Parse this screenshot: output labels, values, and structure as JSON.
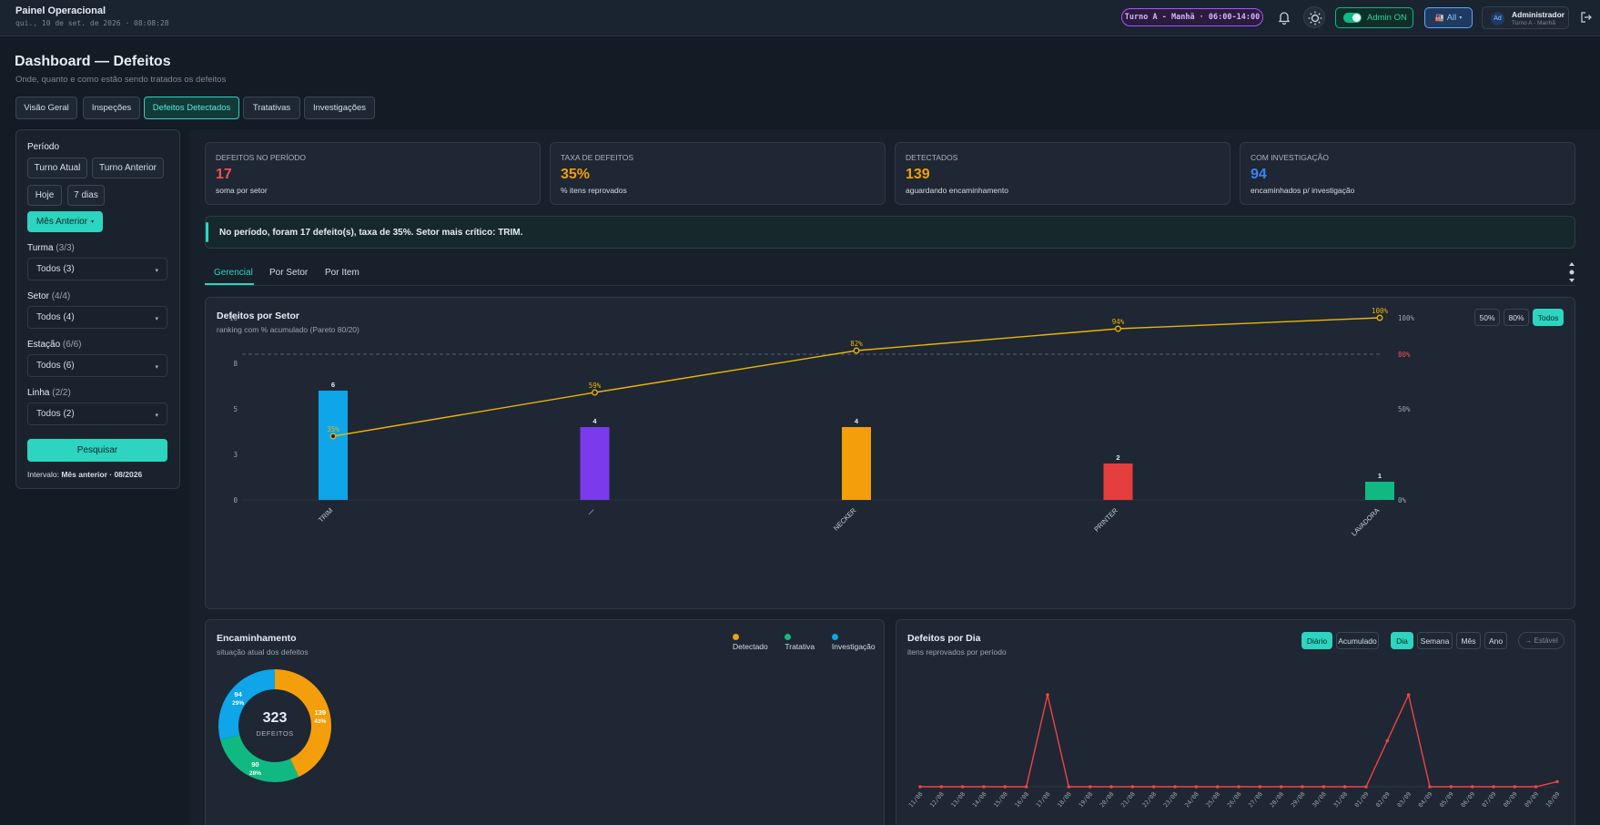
{
  "header": {
    "title": "Painel Operacional",
    "datetime": "qui., 10 de set. de 2026 · 08:08:28",
    "shift_pill": "Turno A - Manhã · 06:00-14:00",
    "admin_toggle": "Admin ON",
    "scope": "All",
    "user_initials": "Ad",
    "user_name": "Administrador",
    "user_shift": "Turno A - Manhã"
  },
  "page": {
    "title": "Dashboard — Defeitos",
    "subtitle": "Onde, quanto e como estão sendo tratados os defeitos"
  },
  "tabs": [
    "Visão Geral",
    "Inspeções",
    "Defeitos Detectados",
    "Tratativas",
    "Investigações"
  ],
  "filters": {
    "period_label": "Período",
    "period_buttons": [
      "Turno Atual",
      "Turno Anterior",
      "Hoje",
      "7 dias",
      "Mês Anterior"
    ],
    "turma_label": "Turma",
    "turma_count": "(3/3)",
    "turma_value": "Todos (3)",
    "setor_label": "Setor",
    "setor_count": "(4/4)",
    "setor_value": "Todos (4)",
    "estacao_label": "Estação",
    "estacao_count": "(6/6)",
    "estacao_value": "Todos (6)",
    "linha_label": "Linha",
    "linha_count": "(2/2)",
    "linha_value": "Todos (2)",
    "search_button": "Pesquisar",
    "interval_label": "Intervalo:",
    "interval_value": "Mês anterior · 08/2026"
  },
  "kpis": [
    {
      "title": "DEFEITOS NO PERÍODO",
      "value": "17",
      "sub": "soma por setor",
      "color": "#f05252"
    },
    {
      "title": "TAXA DE DEFEITOS",
      "value": "35%",
      "sub": "% itens reprovados",
      "color": "#f59e0b"
    },
    {
      "title": "DETECTADOS",
      "value": "139",
      "sub": "aguardando encaminhamento",
      "color": "#f59e0b"
    },
    {
      "title": "COM INVESTIGAÇÃO",
      "value": "94",
      "sub": "encaminhados p/ investigação",
      "color": "#3b82f6"
    }
  ],
  "insight": "No período, foram 17 defeito(s), taxa de 35%. Setor mais crítico: TRIM.",
  "subtabs": [
    "Gerencial",
    "Por Setor",
    "Por Item"
  ],
  "pareto": {
    "title": "Defeitos por Setor",
    "subtitle": "ranking com % acumulado (Pareto 80/20)",
    "filters": [
      "50%",
      "80%",
      "Todos"
    ]
  },
  "encaminhamento": {
    "title": "Encaminhamento",
    "subtitle": "situação atual dos defeitos",
    "legend": [
      "Detectado",
      "Tratativa",
      "Investigação"
    ],
    "total": "323",
    "total_label": "DEFEITOS"
  },
  "daily": {
    "title": "Defeitos por Dia",
    "subtitle": "itens reprovados por período",
    "mode_buttons": [
      "Diário",
      "Acumulado"
    ],
    "gran_buttons": [
      "Dia",
      "Semana",
      "Mês",
      "Ano"
    ],
    "trend": "→ Estável"
  },
  "chart_data": [
    {
      "type": "bar",
      "title": "Defeitos por Setor",
      "categories": [
        "TRIM",
        "—",
        "NECKER",
        "PRINTER",
        "LAVADORA"
      ],
      "values": [
        6,
        4,
        4,
        2,
        1
      ],
      "colors": [
        "#0ea5e9",
        "#7c3aed",
        "#f59e0b",
        "#e53e3e",
        "#10b981"
      ],
      "cumulative_pct": [
        35,
        59,
        82,
        94,
        100
      ],
      "cumulative_labels": [
        "35%",
        "59%",
        "82%",
        "94%",
        "100%"
      ],
      "yticks": [
        "0",
        "3",
        "5",
        "8",
        "10"
      ],
      "ylim": [
        0,
        10
      ],
      "y2ticks": [
        "0%",
        "50%",
        "100%"
      ],
      "threshold_label": "80%",
      "threshold": 80
    },
    {
      "type": "pie",
      "title": "Encaminhamento",
      "labels": [
        "Detectado",
        "Tratativa",
        "Investigação"
      ],
      "values": [
        139,
        90,
        94
      ],
      "pct": [
        "43%",
        "28%",
        "29%"
      ],
      "colors": [
        "#f59e0b",
        "#10b981",
        "#0ea5e9"
      ]
    },
    {
      "type": "line",
      "title": "Defeitos por Dia",
      "x": [
        "11/08",
        "12/08",
        "13/08",
        "14/08",
        "15/08",
        "16/08",
        "17/08",
        "18/08",
        "19/08",
        "20/08",
        "21/08",
        "22/08",
        "23/08",
        "24/08",
        "25/08",
        "26/08",
        "27/08",
        "28/08",
        "29/08",
        "30/08",
        "31/08",
        "01/09",
        "02/09",
        "03/09",
        "04/09",
        "05/09",
        "06/09",
        "07/09",
        "08/09",
        "09/09",
        "10/09"
      ],
      "y": [
        0,
        0,
        0,
        0,
        0,
        0,
        9,
        0,
        0,
        0,
        0,
        0,
        0,
        0,
        0,
        0,
        0,
        0,
        0,
        0,
        0,
        0,
        4.5,
        9,
        0,
        0,
        0,
        0,
        0,
        0,
        0.5
      ],
      "color": "#ef4444"
    }
  ]
}
